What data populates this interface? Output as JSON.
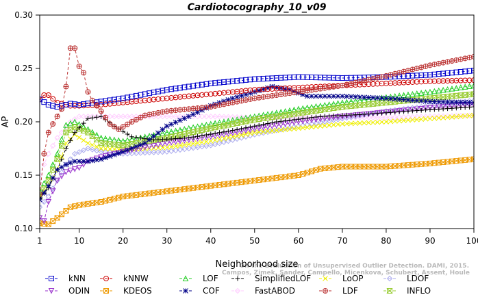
{
  "chart_data": {
    "type": "line",
    "title": "Cardiotocography_10_v09",
    "xlabel": "Neighborhood size",
    "ylabel": "AP",
    "xlim": [
      1,
      100
    ],
    "ylim": [
      0.1,
      0.3
    ],
    "xticks": [
      1,
      10,
      20,
      30,
      40,
      50,
      60,
      70,
      80,
      90,
      100
    ],
    "yticks": [
      0.1,
      0.15,
      0.2,
      0.25,
      0.3
    ],
    "yticklabels": [
      "0.10",
      "0.15",
      "0.20",
      "0.25",
      "0.30"
    ],
    "grid": false,
    "legend_position": "bottom",
    "watermark": "Campos, Zimek, Sander, Campello, Micenkova, Schubert, Assent, Houle",
    "watermark_line2": "On the Evaluation of Unsupervised Outlier Detection. DAMI, 2015.",
    "series": [
      {
        "name": "kNN",
        "color": "#0000cc",
        "marker": "square",
        "points": [
          [
            1,
            0.221
          ],
          [
            3,
            0.216
          ],
          [
            5,
            0.214
          ],
          [
            8,
            0.217
          ],
          [
            10,
            0.216
          ],
          [
            15,
            0.219
          ],
          [
            20,
            0.222
          ],
          [
            30,
            0.23
          ],
          [
            40,
            0.236
          ],
          [
            50,
            0.24
          ],
          [
            60,
            0.242
          ],
          [
            70,
            0.241
          ],
          [
            80,
            0.242
          ],
          [
            90,
            0.244
          ],
          [
            100,
            0.248
          ]
        ]
      },
      {
        "name": "kNNW",
        "color": "#cc0000",
        "marker": "circle",
        "points": [
          [
            1,
            0.221
          ],
          [
            2,
            0.225
          ],
          [
            3,
            0.225
          ],
          [
            5,
            0.218
          ],
          [
            8,
            0.215
          ],
          [
            10,
            0.215
          ],
          [
            15,
            0.216
          ],
          [
            20,
            0.218
          ],
          [
            30,
            0.222
          ],
          [
            40,
            0.226
          ],
          [
            50,
            0.23
          ],
          [
            60,
            0.232
          ],
          [
            70,
            0.234
          ],
          [
            80,
            0.236
          ],
          [
            90,
            0.238
          ],
          [
            100,
            0.239
          ]
        ]
      },
      {
        "name": "LOF",
        "color": "#22cc22",
        "marker": "triangle-up",
        "points": [
          [
            1,
            0.135
          ],
          [
            3,
            0.15
          ],
          [
            5,
            0.17
          ],
          [
            7,
            0.197
          ],
          [
            9,
            0.2
          ],
          [
            12,
            0.193
          ],
          [
            15,
            0.185
          ],
          [
            20,
            0.182
          ],
          [
            30,
            0.19
          ],
          [
            40,
            0.198
          ],
          [
            50,
            0.205
          ],
          [
            60,
            0.212
          ],
          [
            70,
            0.218
          ],
          [
            80,
            0.223
          ],
          [
            90,
            0.228
          ],
          [
            100,
            0.234
          ]
        ]
      },
      {
        "name": "SimplifiedLOF",
        "color": "#000000",
        "marker": "plus",
        "points": [
          [
            1,
            0.128
          ],
          [
            3,
            0.138
          ],
          [
            5,
            0.155
          ],
          [
            7,
            0.175
          ],
          [
            9,
            0.19
          ],
          [
            12,
            0.203
          ],
          [
            15,
            0.205
          ],
          [
            18,
            0.196
          ],
          [
            22,
            0.186
          ],
          [
            27,
            0.183
          ],
          [
            35,
            0.185
          ],
          [
            45,
            0.192
          ],
          [
            55,
            0.2
          ],
          [
            65,
            0.205
          ],
          [
            75,
            0.207
          ],
          [
            85,
            0.21
          ],
          [
            100,
            0.214
          ]
        ]
      },
      {
        "name": "LoOP",
        "color": "#eeee00",
        "marker": "x",
        "points": [
          [
            1,
            0.13
          ],
          [
            3,
            0.14
          ],
          [
            5,
            0.155
          ],
          [
            7,
            0.18
          ],
          [
            9,
            0.188
          ],
          [
            12,
            0.18
          ],
          [
            15,
            0.175
          ],
          [
            20,
            0.174
          ],
          [
            30,
            0.176
          ],
          [
            40,
            0.182
          ],
          [
            50,
            0.19
          ],
          [
            60,
            0.194
          ],
          [
            70,
            0.198
          ],
          [
            80,
            0.2
          ],
          [
            90,
            0.203
          ],
          [
            100,
            0.206
          ]
        ]
      },
      {
        "name": "LDOF",
        "color": "#aaaaee",
        "marker": "diamond",
        "points": [
          [
            1,
            0.12
          ],
          [
            3,
            0.13
          ],
          [
            5,
            0.145
          ],
          [
            7,
            0.16
          ],
          [
            9,
            0.17
          ],
          [
            12,
            0.175
          ],
          [
            15,
            0.172
          ],
          [
            20,
            0.17
          ],
          [
            30,
            0.172
          ],
          [
            40,
            0.178
          ],
          [
            50,
            0.188
          ],
          [
            60,
            0.196
          ],
          [
            70,
            0.203
          ],
          [
            80,
            0.21
          ],
          [
            90,
            0.215
          ],
          [
            100,
            0.22
          ]
        ]
      },
      {
        "name": "ODIN",
        "color": "#9933cc",
        "marker": "triangle-down",
        "points": [
          [
            1,
            0.11
          ],
          [
            2,
            0.107
          ],
          [
            3,
            0.125
          ],
          [
            5,
            0.145
          ],
          [
            7,
            0.153
          ],
          [
            10,
            0.157
          ],
          [
            12,
            0.163
          ],
          [
            15,
            0.167
          ],
          [
            20,
            0.172
          ],
          [
            30,
            0.18
          ],
          [
            40,
            0.186
          ],
          [
            50,
            0.193
          ],
          [
            60,
            0.2
          ],
          [
            70,
            0.205
          ],
          [
            80,
            0.209
          ],
          [
            90,
            0.213
          ],
          [
            100,
            0.216
          ]
        ]
      },
      {
        "name": "KDEOS",
        "color": "#ee9900",
        "marker": "square-x",
        "points": [
          [
            1,
            0.105
          ],
          [
            3,
            0.104
          ],
          [
            5,
            0.11
          ],
          [
            8,
            0.12
          ],
          [
            10,
            0.122
          ],
          [
            15,
            0.125
          ],
          [
            20,
            0.13
          ],
          [
            30,
            0.135
          ],
          [
            40,
            0.14
          ],
          [
            50,
            0.145
          ],
          [
            60,
            0.15
          ],
          [
            65,
            0.156
          ],
          [
            70,
            0.158
          ],
          [
            80,
            0.158
          ],
          [
            90,
            0.161
          ],
          [
            100,
            0.165
          ]
        ]
      },
      {
        "name": "COF",
        "color": "#000088",
        "marker": "star",
        "points": [
          [
            1,
            0.127
          ],
          [
            3,
            0.14
          ],
          [
            5,
            0.155
          ],
          [
            7,
            0.16
          ],
          [
            9,
            0.163
          ],
          [
            12,
            0.163
          ],
          [
            15,
            0.165
          ],
          [
            20,
            0.172
          ],
          [
            25,
            0.18
          ],
          [
            30,
            0.196
          ],
          [
            35,
            0.205
          ],
          [
            40,
            0.215
          ],
          [
            45,
            0.222
          ],
          [
            50,
            0.228
          ],
          [
            54,
            0.233
          ],
          [
            58,
            0.23
          ],
          [
            62,
            0.224
          ],
          [
            70,
            0.224
          ],
          [
            80,
            0.222
          ],
          [
            90,
            0.219
          ],
          [
            100,
            0.218
          ]
        ]
      },
      {
        "name": "FastABOD",
        "color": "#ffccff",
        "marker": "diamond",
        "points": [
          [
            1,
            0.15
          ],
          [
            3,
            0.17
          ],
          [
            5,
            0.185
          ],
          [
            8,
            0.2
          ],
          [
            10,
            0.205
          ],
          [
            15,
            0.205
          ],
          [
            20,
            0.205
          ],
          [
            30,
            0.205
          ],
          [
            40,
            0.205
          ],
          [
            50,
            0.204
          ],
          [
            60,
            0.204
          ],
          [
            70,
            0.204
          ],
          [
            80,
            0.204
          ],
          [
            90,
            0.205
          ],
          [
            100,
            0.206
          ]
        ]
      },
      {
        "name": "LDF",
        "color": "#bb3333",
        "marker": "circle-plus",
        "points": [
          [
            1,
            0.132
          ],
          [
            2,
            0.17
          ],
          [
            3,
            0.19
          ],
          [
            4,
            0.198
          ],
          [
            5,
            0.205
          ],
          [
            6,
            0.212
          ],
          [
            7,
            0.233
          ],
          [
            8,
            0.269
          ],
          [
            9,
            0.269
          ],
          [
            10,
            0.252
          ],
          [
            11,
            0.246
          ],
          [
            12,
            0.228
          ],
          [
            13,
            0.22
          ],
          [
            15,
            0.21
          ],
          [
            17,
            0.198
          ],
          [
            19,
            0.193
          ],
          [
            22,
            0.2
          ],
          [
            25,
            0.206
          ],
          [
            30,
            0.21
          ],
          [
            40,
            0.214
          ],
          [
            50,
            0.222
          ],
          [
            60,
            0.228
          ],
          [
            70,
            0.234
          ],
          [
            80,
            0.243
          ],
          [
            90,
            0.253
          ],
          [
            100,
            0.261
          ]
        ]
      },
      {
        "name": "INFLO",
        "color": "#99cc33",
        "marker": "hourglass",
        "points": [
          [
            1,
            0.13
          ],
          [
            3,
            0.145
          ],
          [
            5,
            0.165
          ],
          [
            7,
            0.19
          ],
          [
            9,
            0.195
          ],
          [
            12,
            0.19
          ],
          [
            15,
            0.18
          ],
          [
            20,
            0.178
          ],
          [
            30,
            0.185
          ],
          [
            40,
            0.194
          ],
          [
            50,
            0.202
          ],
          [
            60,
            0.208
          ],
          [
            70,
            0.214
          ],
          [
            80,
            0.218
          ],
          [
            90,
            0.222
          ],
          [
            100,
            0.226
          ]
        ]
      }
    ]
  }
}
